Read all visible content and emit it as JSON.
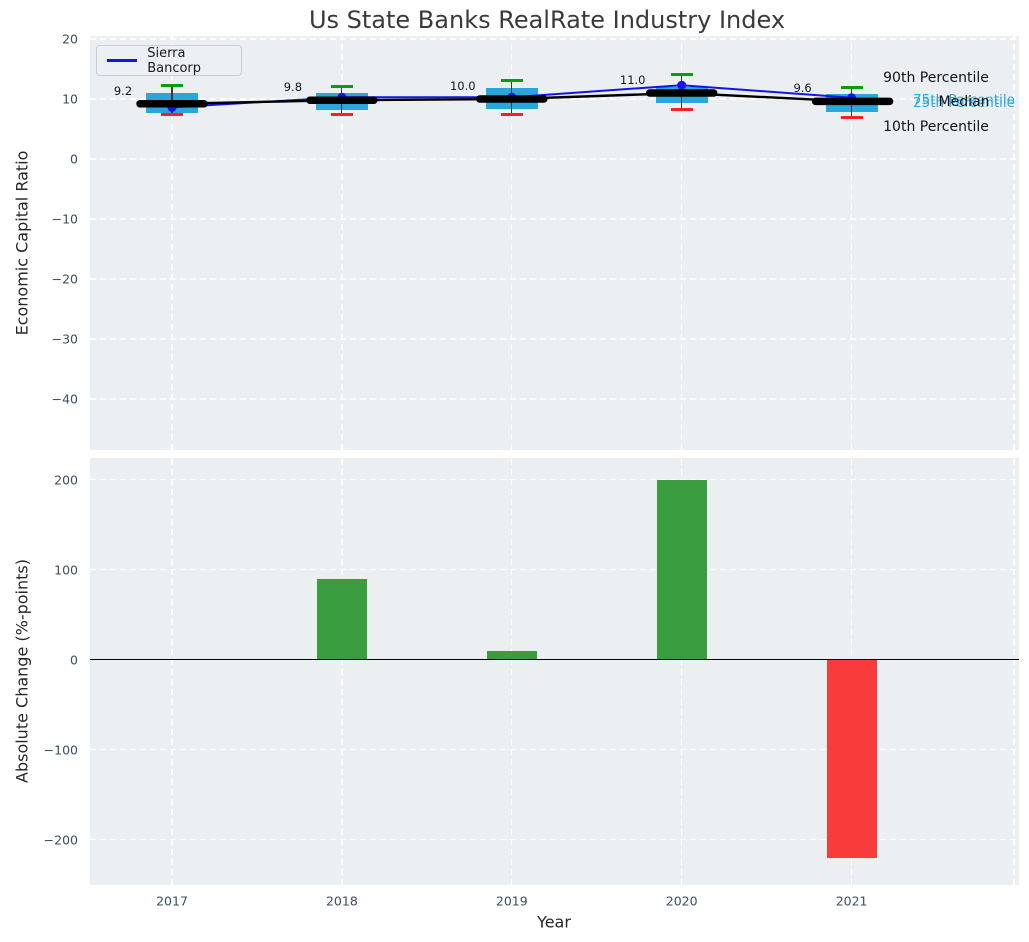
{
  "title": "Us State Banks RealRate Industry Index",
  "legend": {
    "series_label": "Sierra Bancorp"
  },
  "top_chart": {
    "ylabel": "Economic Capital Ratio"
  },
  "bottom_chart": {
    "ylabel": "Absolute Change (%-points)",
    "xlabel": "Year"
  },
  "colors": {
    "box_fill": "#29A7DA",
    "cap_high_green": "#0A9D0A",
    "cap_low_red": "#FF1F1F",
    "bar_positive_green": "#3A9D3F",
    "bar_negative_red": "#FA3B3B",
    "sierra_line_blue": "#1414E8",
    "median_line_black": "#000000",
    "percentile_label_blue": "#2FA8DB",
    "panel_background": "#ECEFF1"
  },
  "chart_data": [
    {
      "type": "boxplot+line",
      "title": "Us State Banks RealRate Industry Index",
      "ylabel": "Economic Capital Ratio",
      "categories": [
        "2017",
        "2018",
        "2019",
        "2020",
        "2021"
      ],
      "yticks": [
        20,
        10,
        0,
        -10,
        -20,
        -30,
        -40
      ],
      "ylim": [
        -48.5,
        20
      ],
      "grid": "white dashed",
      "legend_position": "upper left",
      "series": [
        {
          "name": "Sierra Bancorp",
          "role": "line",
          "values": [
            8.6,
            10.3,
            10.3,
            12.3,
            10.2
          ]
        },
        {
          "name": "Median",
          "role": "median",
          "values": [
            9.2,
            9.8,
            10.0,
            11.0,
            9.6
          ]
        },
        {
          "name": "90th Percentile",
          "role": "whisker-top",
          "values": [
            12.2,
            12.1,
            13.1,
            14.1,
            12.0
          ]
        },
        {
          "name": "75th Percentile",
          "role": "box-top",
          "values": [
            11.0,
            11.0,
            11.9,
            12.0,
            10.9
          ]
        },
        {
          "name": "25th Percentile",
          "role": "box-bottom",
          "values": [
            7.7,
            8.2,
            8.4,
            9.3,
            7.9
          ]
        },
        {
          "name": "10th Percentile",
          "role": "whisker-bottom",
          "values": [
            7.5,
            7.5,
            7.5,
            8.3,
            6.9
          ]
        }
      ],
      "median_labels": [
        "9.2",
        "9.8",
        "10.0",
        "11.0",
        "9.6"
      ],
      "right_annotations": [
        {
          "text": "90th Percentile",
          "color": "black"
        },
        {
          "text": "75th Percentile",
          "color": "blue"
        },
        {
          "text": "Median",
          "color": "black"
        },
        {
          "text": "25th Percentile",
          "color": "blue"
        },
        {
          "text": "10th Percentile",
          "color": "black"
        }
      ]
    },
    {
      "type": "bar",
      "ylabel": "Absolute Change (%-points)",
      "xlabel": "Year",
      "categories": [
        "2017",
        "2018",
        "2019",
        "2020",
        "2021"
      ],
      "values": [
        0,
        90,
        10,
        200,
        -220
      ],
      "yticks": [
        200,
        100,
        0,
        -100,
        -200
      ],
      "ylim": [
        -250,
        224
      ],
      "zero_line": true
    }
  ]
}
